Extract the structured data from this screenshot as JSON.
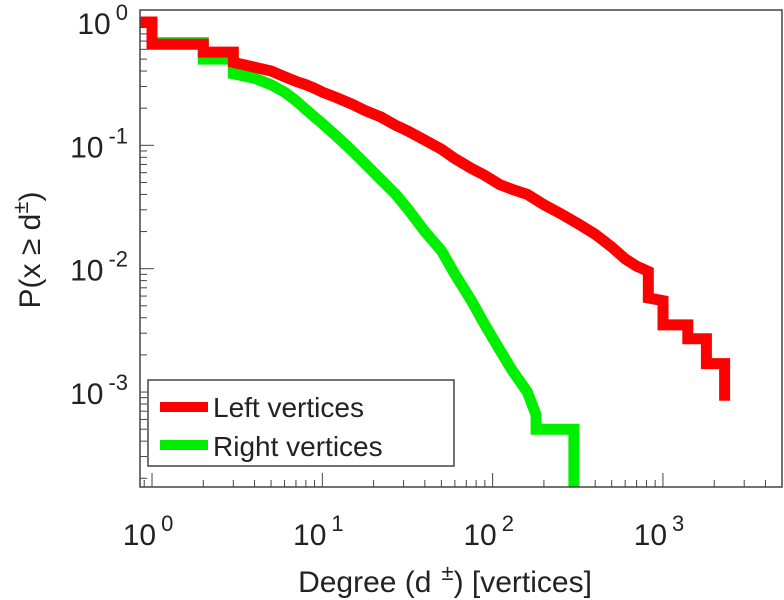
{
  "chart_data": {
    "type": "line",
    "title": "",
    "xlabel": "Degree (d",
    "xlabel_sup": "±",
    "xlabel_suffix": ") [vertices]",
    "ylabel": "P(x ≥ d",
    "ylabel_sup": "±",
    "ylabel_suffix": ")",
    "x_scale": "log",
    "y_scale": "log",
    "xlim": [
      0.85,
      5000
    ],
    "ylim": [
      0.00017,
      1.25
    ],
    "x_ticks": [
      {
        "base": "10",
        "exp": "0",
        "value": 1
      },
      {
        "base": "10",
        "exp": "1",
        "value": 10
      },
      {
        "base": "10",
        "exp": "2",
        "value": 100
      },
      {
        "base": "10",
        "exp": "3",
        "value": 1000
      }
    ],
    "y_ticks": [
      {
        "base": "10",
        "exp": "0",
        "value": 1
      },
      {
        "base": "10",
        "exp": "-1",
        "value": 0.1
      },
      {
        "base": "10",
        "exp": "-2",
        "value": 0.01
      },
      {
        "base": "10",
        "exp": "-3",
        "value": 0.001
      }
    ],
    "legend": {
      "position": "bottom-left"
    },
    "series": [
      {
        "name": "Left vertices",
        "color": "#ff0000",
        "points": [
          [
            0.85,
            1.0
          ],
          [
            1.0,
            1.0
          ],
          [
            1.0,
            0.66
          ],
          [
            2.0,
            0.66
          ],
          [
            2.0,
            0.57
          ],
          [
            3.0,
            0.57
          ],
          [
            3.0,
            0.47
          ],
          [
            4.0,
            0.43
          ],
          [
            5.0,
            0.4
          ],
          [
            6.0,
            0.36
          ],
          [
            7.0,
            0.33
          ],
          [
            8.0,
            0.31
          ],
          [
            9.0,
            0.29
          ],
          [
            10.0,
            0.27
          ],
          [
            12.0,
            0.245
          ],
          [
            15.0,
            0.215
          ],
          [
            18.0,
            0.19
          ],
          [
            22.0,
            0.17
          ],
          [
            27.0,
            0.145
          ],
          [
            32.0,
            0.13
          ],
          [
            40.0,
            0.11
          ],
          [
            50.0,
            0.093
          ],
          [
            60.0,
            0.078
          ],
          [
            75.0,
            0.065
          ],
          [
            90.0,
            0.057
          ],
          [
            110.0,
            0.048
          ],
          [
            130.0,
            0.044
          ],
          [
            160.0,
            0.04
          ],
          [
            200.0,
            0.033
          ],
          [
            250.0,
            0.028
          ],
          [
            320.0,
            0.023
          ],
          [
            400.0,
            0.019
          ],
          [
            500.0,
            0.015
          ],
          [
            600.0,
            0.012
          ],
          [
            700.0,
            0.0105
          ],
          [
            820.0,
            0.0095
          ],
          [
            820.0,
            0.0058
          ],
          [
            1000.0,
            0.0055
          ],
          [
            1000.0,
            0.0035
          ],
          [
            1400.0,
            0.0035
          ],
          [
            1400.0,
            0.0027
          ],
          [
            1800.0,
            0.0027
          ],
          [
            1800.0,
            0.0017
          ],
          [
            2300.0,
            0.0017
          ],
          [
            2300.0,
            0.00085
          ]
        ]
      },
      {
        "name": "Right vertices",
        "color": "#00ee00",
        "points": [
          [
            0.85,
            1.0
          ],
          [
            1.0,
            1.0
          ],
          [
            1.0,
            0.68
          ],
          [
            2.0,
            0.68
          ],
          [
            2.0,
            0.5
          ],
          [
            3.0,
            0.5
          ],
          [
            3.0,
            0.38
          ],
          [
            4.0,
            0.35
          ],
          [
            5.0,
            0.31
          ],
          [
            6.0,
            0.27
          ],
          [
            7.0,
            0.23
          ],
          [
            8.0,
            0.195
          ],
          [
            9.0,
            0.17
          ],
          [
            10.0,
            0.15
          ],
          [
            12.0,
            0.12
          ],
          [
            15.0,
            0.09
          ],
          [
            18.0,
            0.07
          ],
          [
            22.0,
            0.053
          ],
          [
            27.0,
            0.04
          ],
          [
            32.0,
            0.03
          ],
          [
            40.0,
            0.02
          ],
          [
            50.0,
            0.014
          ],
          [
            60.0,
            0.009
          ],
          [
            75.0,
            0.0055
          ],
          [
            90.0,
            0.0035
          ],
          [
            110.0,
            0.0022
          ],
          [
            130.0,
            0.0015
          ],
          [
            160.0,
            0.001
          ],
          [
            180.0,
            0.00065
          ],
          [
            180.0,
            0.0005
          ],
          [
            300.0,
            0.0005
          ],
          [
            300.0,
            0.00017
          ]
        ]
      }
    ]
  }
}
